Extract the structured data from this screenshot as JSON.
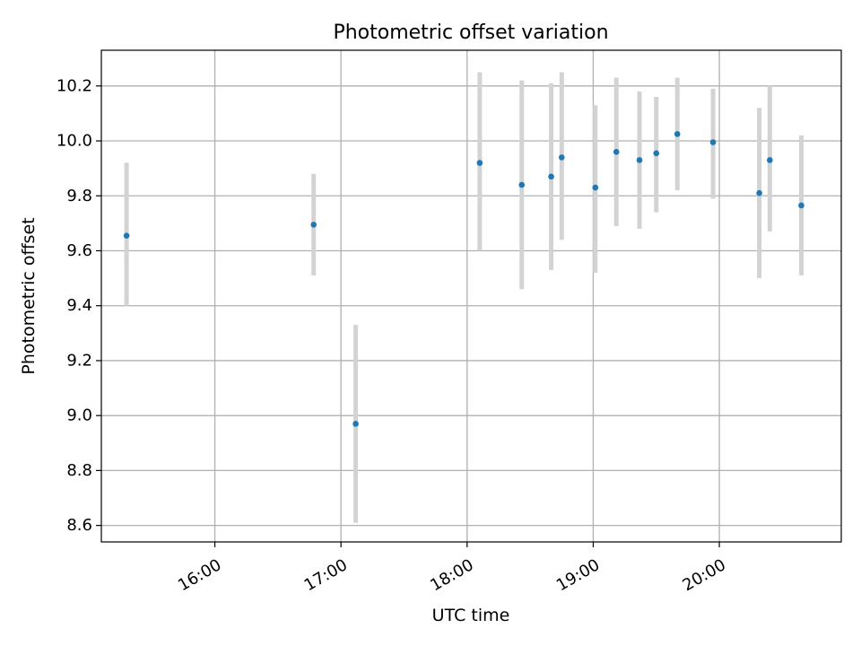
{
  "chart_data": {
    "type": "scatter",
    "title": "Photometric offset variation",
    "xlabel": "UTC time",
    "ylabel": "Photometric offset",
    "x_ticks": [
      "16:00",
      "17:00",
      "18:00",
      "19:00",
      "20:00"
    ],
    "y_ticks": [
      "8.6",
      "8.8",
      "9.0",
      "9.2",
      "9.4",
      "9.6",
      "9.8",
      "10.0",
      "10.2"
    ],
    "xlim": [
      "15:06",
      "20:58"
    ],
    "ylim": [
      8.54,
      10.33
    ],
    "grid": true,
    "points": [
      {
        "x": "15:18",
        "y": 9.655,
        "low": 9.4,
        "high": 9.92
      },
      {
        "x": "16:47",
        "y": 9.695,
        "low": 9.51,
        "high": 9.88
      },
      {
        "x": "17:07",
        "y": 8.97,
        "low": 8.61,
        "high": 9.33
      },
      {
        "x": "18:06",
        "y": 9.92,
        "low": 9.6,
        "high": 10.25
      },
      {
        "x": "18:26",
        "y": 9.84,
        "low": 9.46,
        "high": 10.22
      },
      {
        "x": "18:40",
        "y": 9.87,
        "low": 9.53,
        "high": 10.21
      },
      {
        "x": "18:45",
        "y": 9.94,
        "low": 9.64,
        "high": 10.25
      },
      {
        "x": "19:01",
        "y": 9.83,
        "low": 9.52,
        "high": 10.13
      },
      {
        "x": "19:11",
        "y": 9.96,
        "low": 9.69,
        "high": 10.23
      },
      {
        "x": "19:22",
        "y": 9.93,
        "low": 9.68,
        "high": 10.18
      },
      {
        "x": "19:30",
        "y": 9.955,
        "low": 9.74,
        "high": 10.16
      },
      {
        "x": "19:40",
        "y": 10.025,
        "low": 9.82,
        "high": 10.23
      },
      {
        "x": "19:57",
        "y": 9.995,
        "low": 9.79,
        "high": 10.19
      },
      {
        "x": "20:19",
        "y": 9.81,
        "low": 9.5,
        "high": 10.12
      },
      {
        "x": "20:24",
        "y": 9.93,
        "low": 9.67,
        "high": 10.2
      },
      {
        "x": "20:39",
        "y": 9.765,
        "low": 9.51,
        "high": 10.02
      }
    ],
    "colors": {
      "point": "#1f77b4",
      "errorbar": "#d3d3d3",
      "grid": "#b0b0b0"
    }
  }
}
